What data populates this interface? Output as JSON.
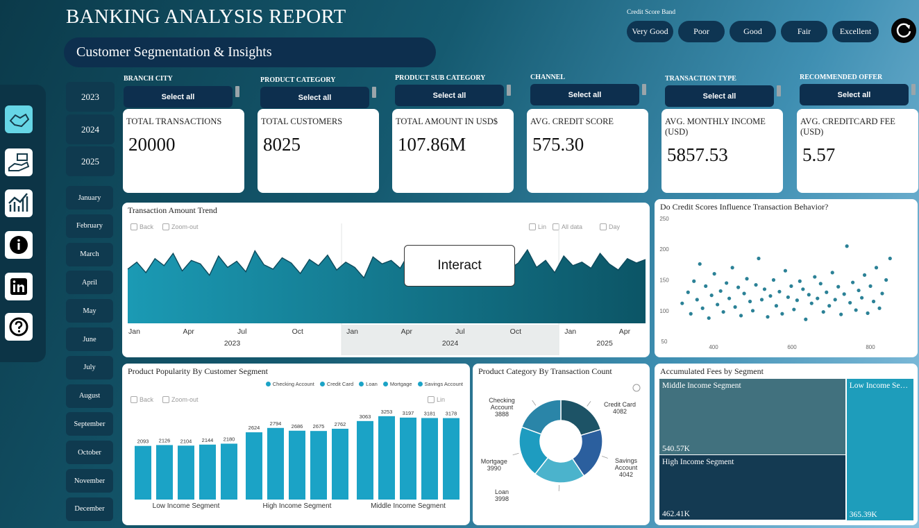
{
  "header": {
    "title": "BANKING ANALYSIS REPORT",
    "subtitle": "Customer Segmentation & Insights"
  },
  "credit_score_band": {
    "label": "Credit Score Band",
    "options": [
      "Very Good",
      "Poor",
      "Good",
      "Fair",
      "Excellent"
    ]
  },
  "years": [
    "2023",
    "2024",
    "2025"
  ],
  "months": [
    "January",
    "February",
    "March",
    "April",
    "May",
    "June",
    "July",
    "August",
    "September",
    "October",
    "November",
    "December"
  ],
  "filters": [
    {
      "label": "BRANCH CITY",
      "value": "Select all"
    },
    {
      "label": "PRODUCT CATEGORY",
      "value": "Select all"
    },
    {
      "label": "PRODUCT SUB CATEGORY",
      "value": "Select all"
    },
    {
      "label": "CHANNEL",
      "value": "Select all"
    },
    {
      "label": "TRANSACTION TYPE",
      "value": "Select all"
    },
    {
      "label": "RECOMMENDED OFFER",
      "value": "Select all"
    }
  ],
  "kpis": [
    {
      "label": "TOTAL TRANSACTIONS",
      "value": "20000"
    },
    {
      "label": "TOTAL CUSTOMERS",
      "value": "8025"
    },
    {
      "label": "TOTAL AMOUNT IN USD$",
      "value": "107.86M"
    },
    {
      "label": "AVG. CREDIT SCORE",
      "value": "575.30"
    },
    {
      "label": "AVG. MONTHLY INCOME (USD)",
      "value": "5857.53"
    },
    {
      "label": "AVG. CREDITCARD FEE (USD)",
      "value": "5.57"
    }
  ],
  "overlay_button": "Interact",
  "chart_data": [
    {
      "type": "line",
      "title": "Transaction Amount Trend",
      "toolbar": [
        "Back",
        "Zoom-out",
        "Lin",
        "All data",
        "Day"
      ],
      "categories": [
        "Jan",
        null,
        null,
        null,
        null,
        null,
        "Apr",
        null,
        null,
        null,
        null,
        null,
        "Jul",
        null,
        null,
        null,
        null,
        null,
        "Oct",
        null,
        null,
        null,
        null,
        null,
        "Jan",
        null,
        null,
        null,
        null,
        null,
        "Apr",
        null,
        null,
        null,
        null,
        null,
        "Jul",
        null,
        null,
        null,
        null,
        null,
        "Oct",
        null,
        null,
        null,
        null,
        null,
        "Jan",
        null,
        null,
        null,
        null,
        null,
        "Apr",
        null,
        null,
        null
      ],
      "x_groups": [
        "2023",
        "2024",
        "2025"
      ],
      "values": [
        62,
        70,
        58,
        74,
        66,
        80,
        60,
        72,
        68,
        55,
        77,
        64,
        71,
        59,
        83,
        67,
        62,
        75,
        69,
        57,
        73,
        66,
        78,
        61,
        70,
        64,
        52,
        76,
        68,
        72,
        63,
        81,
        66,
        59,
        74,
        70,
        65,
        79,
        60,
        71,
        67,
        75,
        62,
        69,
        84,
        64,
        72,
        58,
        77,
        66,
        70,
        63,
        80,
        68,
        61,
        74,
        69,
        73
      ],
      "ylim": [
        0,
        100
      ],
      "color": "#1b9ab4",
      "line_color": "#0d4a5c"
    },
    {
      "type": "scatter",
      "title": "Do Credit Scores Influence Transaction Behavior?",
      "x": [
        320,
        335,
        342,
        350,
        358,
        365,
        372,
        380,
        388,
        395,
        402,
        410,
        418,
        425,
        433,
        440,
        448,
        455,
        463,
        470,
        478,
        485,
        493,
        500,
        508,
        515,
        523,
        530,
        538,
        545,
        553,
        560,
        568,
        575,
        583,
        590,
        598,
        605,
        613,
        620,
        628,
        635,
        643,
        650,
        658,
        665,
        673,
        680,
        688,
        695,
        703,
        710,
        718,
        725,
        733,
        740,
        748,
        755,
        763,
        770,
        778,
        785,
        793,
        800,
        808,
        815,
        823,
        830,
        840,
        850
      ],
      "y": [
        112,
        130,
        95,
        148,
        118,
        176,
        104,
        140,
        88,
        125,
        160,
        110,
        132,
        98,
        145,
        120,
        170,
        106,
        138,
        92,
        128,
        152,
        115,
        100,
        142,
        185,
        118,
        135,
        90,
        124,
        150,
        108,
        131,
        95,
        165,
        122,
        140,
        102,
        117,
        148,
        135,
        86,
        126,
        112,
        155,
        120,
        144,
        98,
        130,
        108,
        162,
        118,
        139,
        94,
        127,
        205,
        113,
        146,
        101,
        133,
        121,
        158,
        96,
        140,
        115,
        170,
        104,
        128,
        150,
        185
      ],
      "xlim": [
        300,
        870
      ],
      "xticks": [
        400,
        600,
        800
      ],
      "ylim": [
        40,
        260
      ],
      "yticks": [
        50,
        100,
        150,
        200,
        250
      ],
      "color": "#2b8196"
    },
    {
      "type": "bar",
      "title": "Product Popularity By Customer Segment",
      "toolbar": [
        "Back",
        "Zoom-out",
        "Lin"
      ],
      "categories": [
        "Low Income Segment",
        "High Income Segment",
        "Middle Income Segment"
      ],
      "series": [
        {
          "name": "Checking Account",
          "color": "#1ba3c6",
          "values": [
            2093,
            2624,
            3063
          ]
        },
        {
          "name": "Credit Card",
          "color": "#1ba3c6",
          "values": [
            2126,
            2794,
            3253
          ]
        },
        {
          "name": "Loan",
          "color": "#1ba3c6",
          "values": [
            2104,
            2686,
            3197
          ]
        },
        {
          "name": "Mortgage",
          "color": "#1ba3c6",
          "values": [
            2144,
            2675,
            3181
          ]
        },
        {
          "name": "Savings Account",
          "color": "#1ba3c6",
          "values": [
            2180,
            2762,
            3178
          ]
        }
      ],
      "ylim": [
        0,
        3600
      ]
    },
    {
      "type": "donut",
      "title": "Product Category By Transaction Count",
      "categories": [
        "Credit Card",
        "Savings Account",
        "Loan",
        "Mortgage",
        "Checking Account"
      ],
      "values": [
        4082,
        4042,
        3998,
        3990,
        3888
      ],
      "colors": [
        "#1d5366",
        "#2b5f9e",
        "#4bb3cc",
        "#1e9cc0",
        "#2a85a8"
      ]
    },
    {
      "type": "treemap",
      "title": "Accumulated Fees by Segment",
      "categories": [
        "Middle Income Segment",
        "High Income Segment",
        "Low Income Segment"
      ],
      "values": [
        540570,
        462410,
        365390
      ],
      "value_labels": [
        "540.57K",
        "462.41K",
        "365.39K"
      ],
      "colors": [
        "#41717e",
        "#143a52",
        "#1e9dbb"
      ]
    }
  ]
}
